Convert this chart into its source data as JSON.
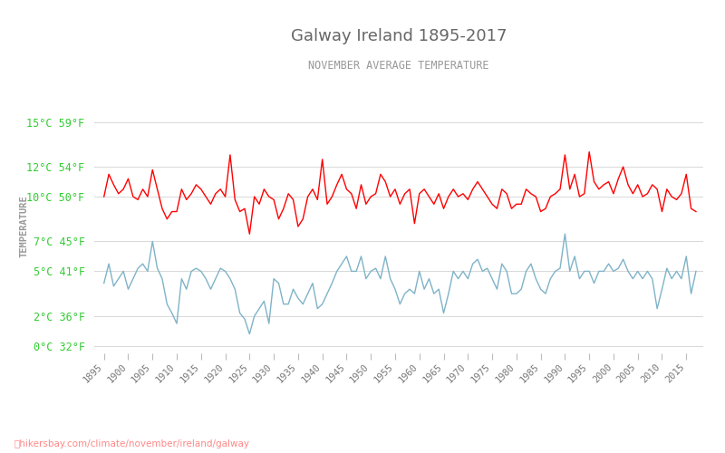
{
  "title": "Galway Ireland 1895-2017",
  "subtitle": "NOVEMBER AVERAGE TEMPERATURE",
  "ylabel": "TEMPERATURE",
  "xlabel_url": "hikersbay.com/climate/november/ireland/galway",
  "years": [
    1895,
    1896,
    1897,
    1898,
    1899,
    1900,
    1901,
    1902,
    1903,
    1904,
    1905,
    1906,
    1907,
    1908,
    1909,
    1910,
    1911,
    1912,
    1913,
    1914,
    1915,
    1916,
    1917,
    1918,
    1919,
    1920,
    1921,
    1922,
    1923,
    1924,
    1925,
    1926,
    1927,
    1928,
    1929,
    1930,
    1931,
    1932,
    1933,
    1934,
    1935,
    1936,
    1937,
    1938,
    1939,
    1940,
    1941,
    1942,
    1943,
    1944,
    1945,
    1946,
    1947,
    1948,
    1949,
    1950,
    1951,
    1952,
    1953,
    1954,
    1955,
    1956,
    1957,
    1958,
    1959,
    1960,
    1961,
    1962,
    1963,
    1964,
    1965,
    1966,
    1967,
    1968,
    1969,
    1970,
    1971,
    1972,
    1973,
    1974,
    1975,
    1976,
    1977,
    1978,
    1979,
    1980,
    1981,
    1982,
    1983,
    1984,
    1985,
    1986,
    1987,
    1988,
    1989,
    1990,
    1991,
    1992,
    1993,
    1994,
    1995,
    1996,
    1997,
    1998,
    1999,
    2000,
    2001,
    2002,
    2003,
    2004,
    2005,
    2006,
    2007,
    2008,
    2009,
    2010,
    2011,
    2012,
    2013,
    2014,
    2015,
    2016,
    2017
  ],
  "day_temps": [
    10.0,
    11.5,
    10.8,
    10.2,
    10.5,
    11.2,
    10.0,
    9.8,
    10.5,
    10.0,
    11.8,
    10.5,
    9.2,
    8.5,
    9.0,
    9.0,
    10.5,
    9.8,
    10.2,
    10.8,
    10.5,
    10.0,
    9.5,
    10.2,
    10.5,
    10.0,
    12.8,
    9.8,
    9.0,
    9.2,
    7.5,
    10.0,
    9.5,
    10.5,
    10.0,
    9.8,
    8.5,
    9.2,
    10.2,
    9.8,
    8.0,
    8.5,
    10.0,
    10.5,
    9.8,
    12.5,
    9.5,
    10.0,
    10.8,
    11.5,
    10.5,
    10.2,
    9.2,
    10.8,
    9.5,
    10.0,
    10.2,
    11.5,
    11.0,
    10.0,
    10.5,
    9.5,
    10.2,
    10.5,
    8.2,
    10.2,
    10.5,
    10.0,
    9.5,
    10.2,
    9.2,
    10.0,
    10.5,
    10.0,
    10.2,
    9.8,
    10.5,
    11.0,
    10.5,
    10.0,
    9.5,
    9.2,
    10.5,
    10.2,
    9.2,
    9.5,
    9.5,
    10.5,
    10.2,
    10.0,
    9.0,
    9.2,
    10.0,
    10.2,
    10.5,
    12.8,
    10.5,
    11.5,
    10.0,
    10.2,
    13.0,
    11.0,
    10.5,
    10.8,
    11.0,
    10.2,
    11.2,
    12.0,
    10.8,
    10.2,
    10.8,
    10.0,
    10.2,
    10.8,
    10.5,
    9.0,
    10.5,
    10.0,
    9.8,
    10.2,
    11.5,
    9.2,
    9.0
  ],
  "night_temps": [
    4.2,
    5.5,
    4.0,
    4.5,
    5.0,
    3.8,
    4.5,
    5.2,
    5.5,
    5.0,
    7.0,
    5.2,
    4.5,
    2.8,
    2.2,
    1.5,
    4.5,
    3.8,
    5.0,
    5.2,
    5.0,
    4.5,
    3.8,
    4.5,
    5.2,
    5.0,
    4.5,
    3.8,
    2.2,
    1.8,
    0.8,
    2.0,
    2.5,
    3.0,
    1.5,
    4.5,
    4.2,
    2.8,
    2.8,
    3.8,
    3.2,
    2.8,
    3.5,
    4.2,
    2.5,
    2.8,
    3.5,
    4.2,
    5.0,
    5.5,
    6.0,
    5.0,
    5.0,
    6.0,
    4.5,
    5.0,
    5.2,
    4.5,
    6.0,
    4.5,
    3.8,
    2.8,
    3.5,
    3.8,
    3.5,
    5.0,
    3.8,
    4.5,
    3.5,
    3.8,
    2.2,
    3.5,
    5.0,
    4.5,
    5.0,
    4.5,
    5.5,
    5.8,
    5.0,
    5.2,
    4.5,
    3.8,
    5.5,
    5.0,
    3.5,
    3.5,
    3.8,
    5.0,
    5.5,
    4.5,
    3.8,
    3.5,
    4.5,
    5.0,
    5.2,
    7.5,
    5.0,
    6.0,
    4.5,
    5.0,
    5.0,
    4.2,
    5.0,
    5.0,
    5.5,
    5.0,
    5.2,
    5.8,
    5.0,
    4.5,
    5.0,
    4.5,
    5.0,
    4.5,
    2.5,
    3.8,
    5.2,
    4.5,
    5.0,
    4.5,
    6.0,
    3.5,
    5.0
  ],
  "day_color": "#ff0000",
  "night_color": "#7fb3c8",
  "title_color": "#666666",
  "subtitle_color": "#999999",
  "grid_color": "#d8d8d8",
  "background_color": "#ffffff",
  "yticks_c": [
    0,
    2,
    5,
    7,
    10,
    12,
    15
  ],
  "yticks_f": [
    32,
    36,
    41,
    45,
    50,
    54,
    59
  ],
  "ylim": [
    -0.5,
    16.5
  ],
  "xlim": [
    1893,
    2018.5
  ]
}
